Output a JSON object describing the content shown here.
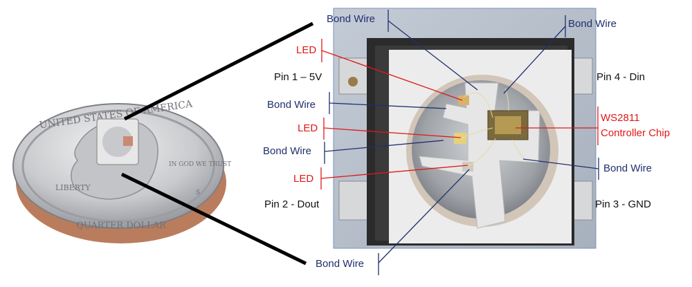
{
  "labels": {
    "bond_wire_top": "Bond Wire",
    "bond_wire_top_right": "Bond Wire",
    "led_1": "LED",
    "pin1": "Pin 1 – 5V",
    "pin4": "Pin 4 - Din",
    "bond_wire_left_1": "Bond Wire",
    "controller_line1": "WS2811",
    "controller_line2": "Controller Chip",
    "led_2": "LED",
    "bond_wire_left_2": "Bond Wire",
    "bond_wire_right": "Bond Wire",
    "led_3": "LED",
    "pin2": "Pin 2 - Dout",
    "pin3": "Pin 3 - GND",
    "bond_wire_bottom": "Bond Wire"
  },
  "coin_text": {
    "united_states": "UNITED STATES OF AMERICA",
    "liberty": "LIBERTY",
    "in_god": "IN GOD WE TRUST",
    "quarter": "QUARTER DOLLAR",
    "mint": "S"
  },
  "colors": {
    "callout_blue": "#1f2f6e",
    "callout_red": "#e01818",
    "package_white": "#eeeeee",
    "die_silver": "#a9adb2"
  }
}
